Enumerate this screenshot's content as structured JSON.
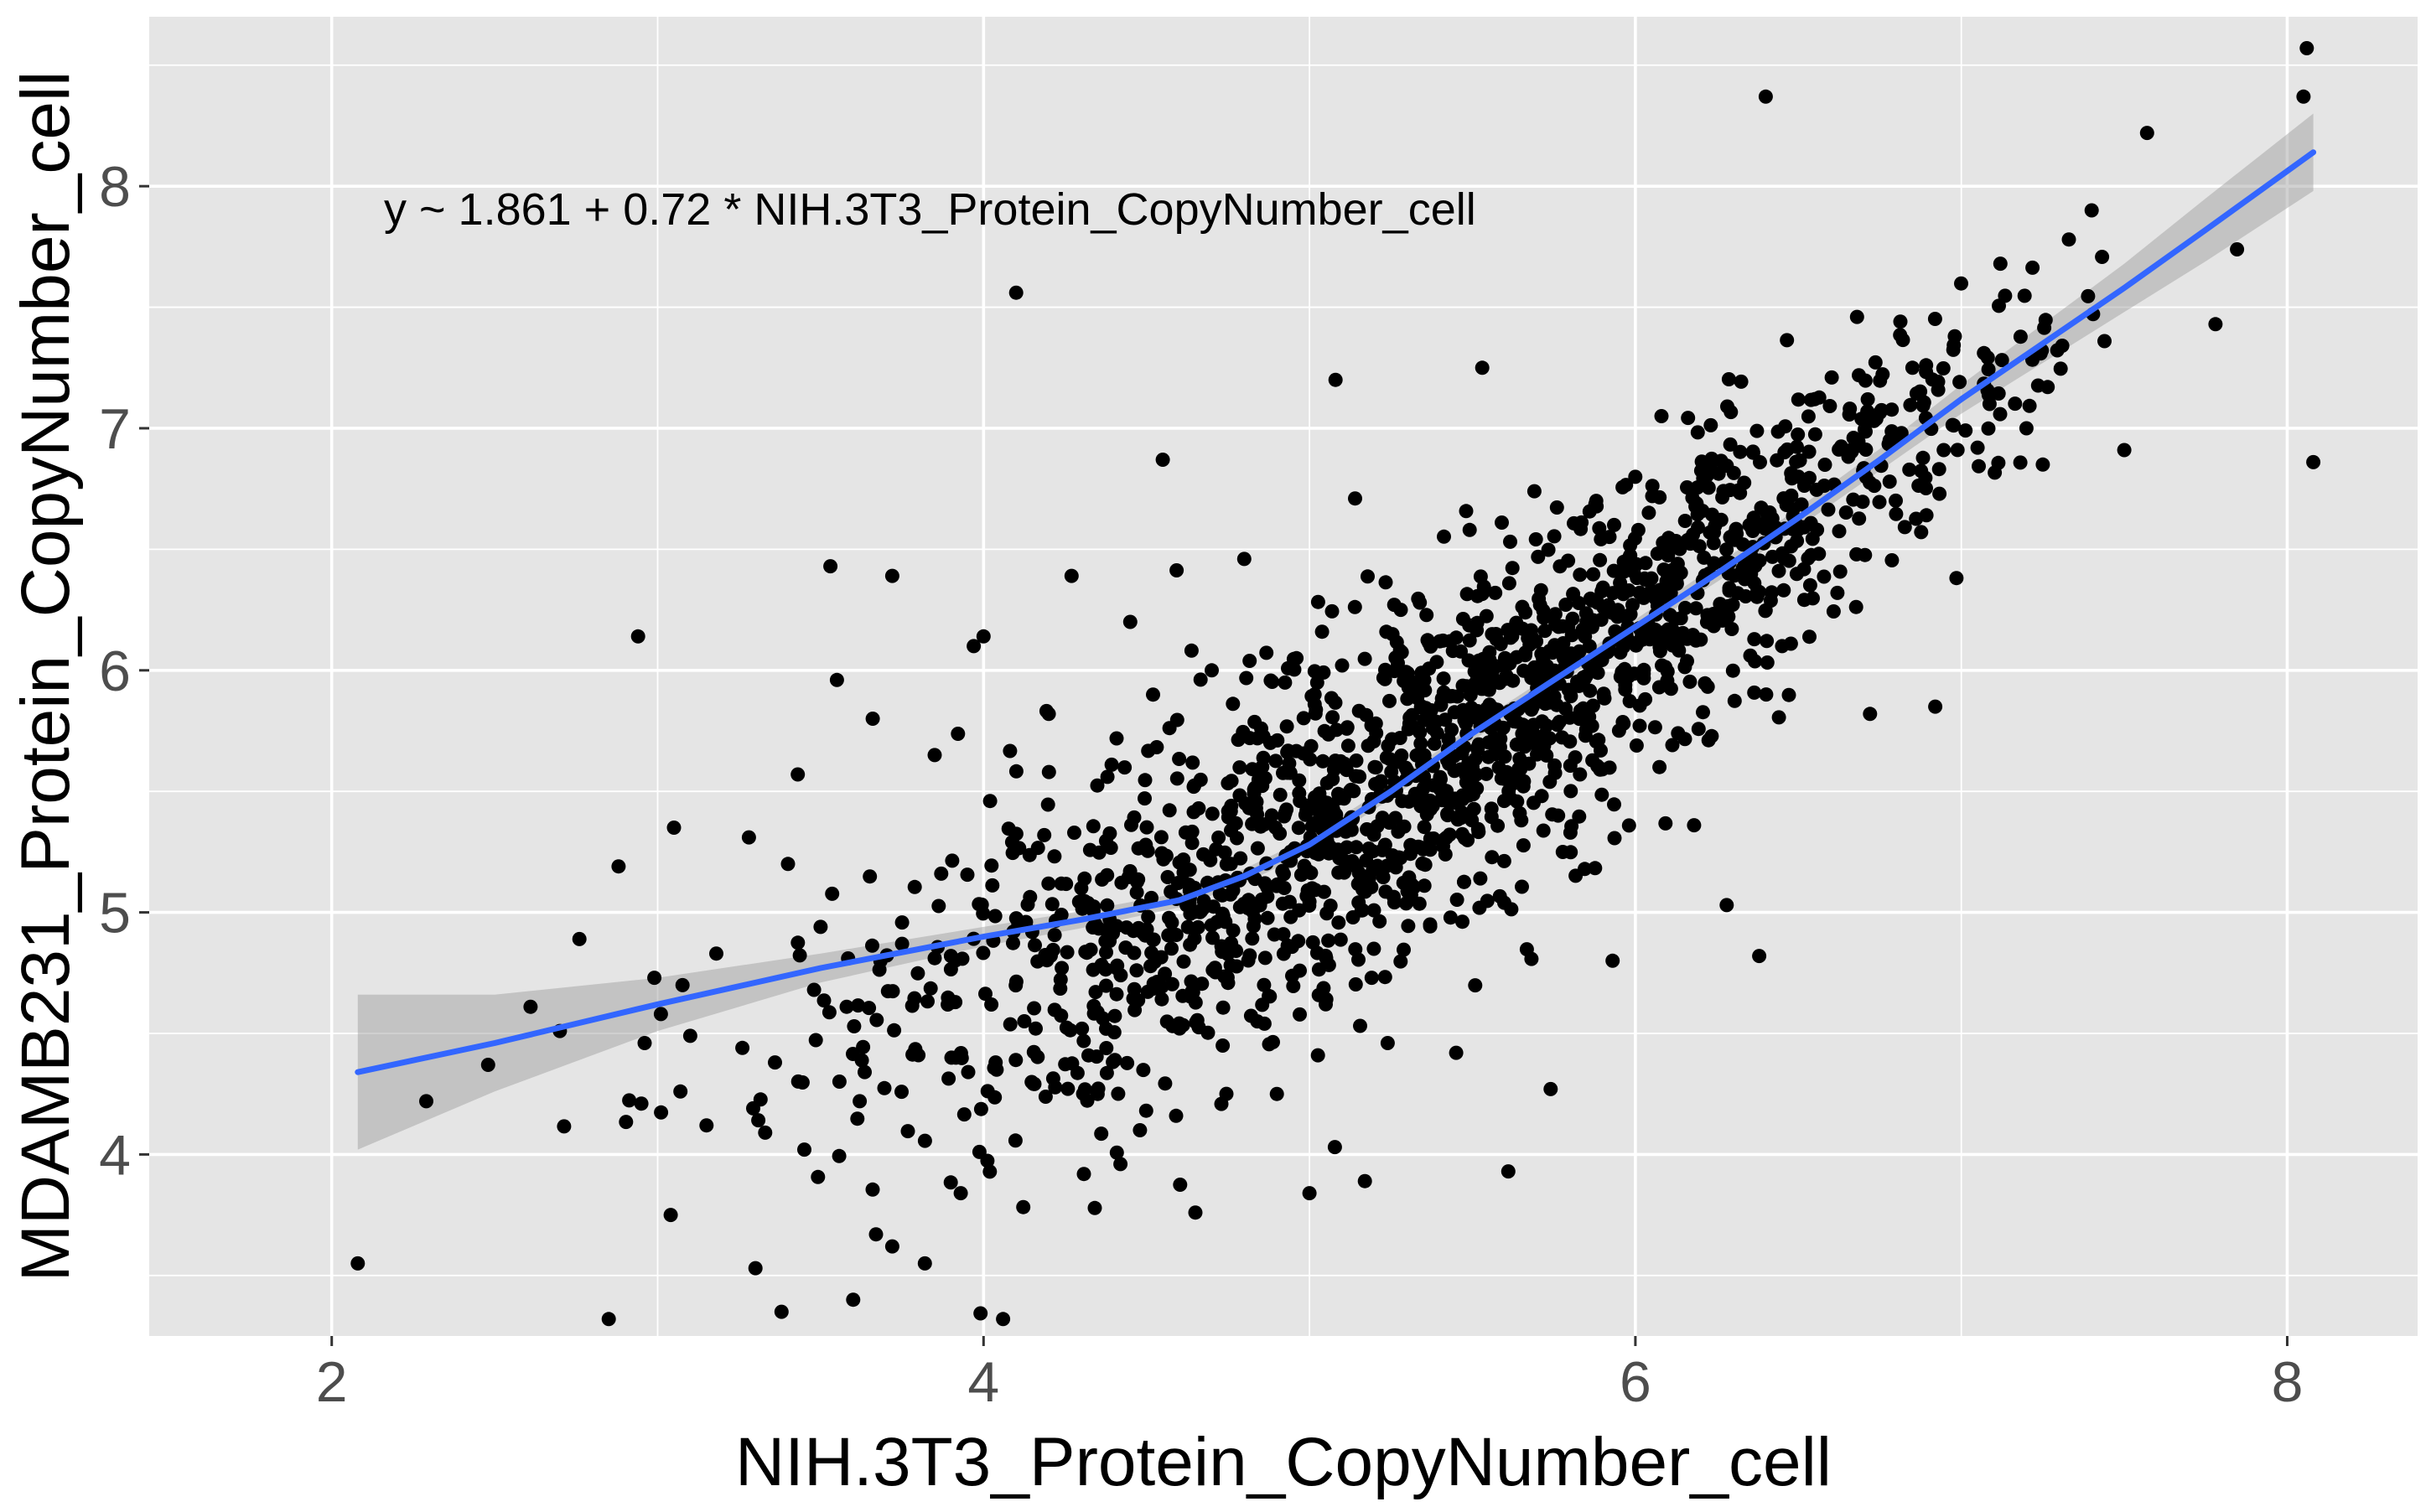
{
  "chart_data": {
    "type": "scatter",
    "title": "",
    "xlabel": "NIH.3T3_Protein_CopyNumber_cell",
    "ylabel": "MDAMB231_Protein_CopyNumber_cell",
    "xlim": [
      1.44,
      8.4
    ],
    "ylim": [
      3.25,
      8.7
    ],
    "x_ticks": [
      2,
      4,
      6,
      8
    ],
    "y_ticks": [
      4,
      5,
      6,
      7,
      8
    ],
    "x_tick_labels": [
      "2",
      "4",
      "6",
      "8"
    ],
    "y_tick_labels": [
      "4",
      "5",
      "6",
      "7",
      "8"
    ],
    "grid": true,
    "legend": "none",
    "annotation": "y ~ 1.861 + 0.72 * NIH.3T3_Protein_CopyNumber_cell",
    "colors": {
      "panel_background": "#e5e5e5",
      "grid": "#ffffff",
      "points": "#000000",
      "smooth_line": "#3366ff",
      "confidence_band": "#999999"
    },
    "smooth": {
      "method": "loess",
      "fit": [
        [
          2.08,
          4.34
        ],
        [
          2.5,
          4.46
        ],
        [
          3.0,
          4.62
        ],
        [
          3.5,
          4.77
        ],
        [
          4.0,
          4.9
        ],
        [
          4.3,
          4.97
        ],
        [
          4.6,
          5.05
        ],
        [
          4.8,
          5.15
        ],
        [
          5.0,
          5.28
        ],
        [
          5.25,
          5.5
        ],
        [
          5.5,
          5.74
        ],
        [
          5.75,
          5.96
        ],
        [
          6.0,
          6.18
        ],
        [
          6.25,
          6.4
        ],
        [
          6.5,
          6.63
        ],
        [
          6.75,
          6.87
        ],
        [
          7.0,
          7.12
        ],
        [
          7.25,
          7.35
        ],
        [
          7.5,
          7.58
        ],
        [
          7.75,
          7.82
        ],
        [
          8.08,
          8.14
        ]
      ],
      "band_width": [
        0.32,
        0.2,
        0.11,
        0.06,
        0.04,
        0.035,
        0.03,
        0.03,
        0.03,
        0.03,
        0.03,
        0.03,
        0.03,
        0.035,
        0.04,
        0.045,
        0.06,
        0.08,
        0.1,
        0.13,
        0.16
      ]
    },
    "points": [
      [
        2.08,
        3.55
      ],
      [
        2.29,
        4.22
      ],
      [
        2.48,
        4.37
      ],
      [
        2.61,
        4.61
      ],
      [
        2.7,
        4.51
      ],
      [
        2.76,
        4.89
      ],
      [
        2.85,
        3.32
      ],
      [
        2.88,
        5.19
      ],
      [
        2.94,
        6.14
      ],
      [
        2.95,
        4.21
      ],
      [
        2.96,
        4.46
      ],
      [
        2.99,
        4.73
      ],
      [
        3.01,
        4.58
      ],
      [
        3.04,
        3.75
      ],
      [
        3.05,
        5.35
      ],
      [
        3.07,
        4.26
      ],
      [
        3.1,
        4.49
      ],
      [
        3.15,
        4.12
      ],
      [
        3.18,
        4.83
      ],
      [
        3.26,
        4.44
      ],
      [
        3.28,
        5.31
      ],
      [
        3.3,
        3.53
      ],
      [
        3.33,
        4.09
      ],
      [
        3.36,
        4.38
      ],
      [
        3.38,
        3.35
      ],
      [
        3.4,
        5.2
      ],
      [
        3.43,
        5.57
      ],
      [
        3.45,
        4.02
      ],
      [
        3.48,
        4.68
      ],
      [
        3.5,
        4.94
      ],
      [
        3.53,
        6.43
      ],
      [
        3.55,
        5.96
      ],
      [
        3.58,
        4.61
      ],
      [
        3.6,
        3.4
      ],
      [
        3.62,
        4.22
      ],
      [
        3.66,
        5.8
      ],
      [
        3.67,
        3.67
      ],
      [
        3.72,
        6.39
      ],
      [
        3.75,
        4.87
      ],
      [
        3.8,
        4.41
      ],
      [
        3.82,
        3.55
      ],
      [
        3.85,
        5.65
      ],
      [
        3.87,
        5.16
      ],
      [
        3.9,
        4.82
      ],
      [
        3.93,
        3.84
      ],
      [
        3.97,
        6.1
      ],
      [
        4.0,
        6.14
      ],
      [
        4.02,
        5.46
      ],
      [
        4.04,
        4.35
      ],
      [
        4.06,
        3.32
      ],
      [
        4.1,
        7.56
      ],
      [
        4.13,
        4.96
      ],
      [
        4.16,
        4.52
      ],
      [
        4.2,
        5.82
      ],
      [
        4.24,
        4.77
      ],
      [
        4.27,
        6.39
      ],
      [
        4.3,
        5.1
      ],
      [
        4.35,
        4.25
      ],
      [
        4.38,
        5.56
      ],
      [
        4.41,
        4.78
      ],
      [
        4.45,
        6.2
      ],
      [
        4.48,
        4.1
      ],
      [
        4.52,
        5.9
      ],
      [
        4.55,
        6.87
      ],
      [
        4.58,
        4.53
      ],
      [
        4.62,
        5.33
      ],
      [
        4.65,
        3.76
      ],
      [
        4.7,
        6.0
      ],
      [
        4.73,
        4.86
      ],
      [
        4.76,
        5.44
      ],
      [
        4.8,
        6.46
      ],
      [
        4.84,
        4.55
      ],
      [
        4.88,
        5.7
      ],
      [
        4.92,
        4.91
      ],
      [
        4.96,
        6.05
      ],
      [
        5.0,
        3.84
      ],
      [
        5.02,
        5.37
      ],
      [
        5.05,
        4.62
      ],
      [
        5.08,
        7.2
      ],
      [
        5.1,
        6.02
      ],
      [
        5.14,
        6.71
      ],
      [
        5.17,
        3.89
      ],
      [
        5.2,
        5.6
      ],
      [
        5.24,
        4.46
      ],
      [
        5.28,
        6.25
      ],
      [
        5.33,
        5.48
      ],
      [
        5.37,
        4.95
      ],
      [
        5.4,
        6.12
      ],
      [
        5.45,
        4.42
      ],
      [
        5.48,
        5.78
      ],
      [
        5.53,
        7.25
      ],
      [
        5.57,
        6.32
      ],
      [
        5.61,
        3.93
      ],
      [
        5.65,
        5.38
      ],
      [
        5.69,
        6.74
      ],
      [
        5.74,
        4.27
      ],
      [
        5.78,
        6.05
      ],
      [
        5.83,
        5.57
      ],
      [
        5.88,
        6.7
      ],
      [
        5.93,
        4.8
      ],
      [
        5.98,
        6.33
      ],
      [
        6.03,
        5.88
      ],
      [
        6.08,
        7.05
      ],
      [
        6.13,
        6.44
      ],
      [
        6.18,
        5.36
      ],
      [
        6.23,
        6.85
      ],
      [
        6.28,
        5.03
      ],
      [
        6.33,
        6.52
      ],
      [
        6.38,
        4.82
      ],
      [
        6.4,
        8.37
      ],
      [
        6.45,
        6.1
      ],
      [
        6.5,
        6.8
      ],
      [
        6.55,
        7.12
      ],
      [
        6.62,
        6.32
      ],
      [
        6.68,
        7.46
      ],
      [
        6.72,
        5.82
      ],
      [
        6.78,
        6.95
      ],
      [
        6.85,
        7.25
      ],
      [
        6.92,
        5.85
      ],
      [
        6.98,
        7.38
      ],
      [
        7.05,
        6.92
      ],
      [
        7.12,
        7.68
      ],
      [
        7.2,
        7.0
      ],
      [
        7.25,
        6.85
      ],
      [
        7.33,
        7.78
      ],
      [
        7.4,
        7.9
      ],
      [
        7.5,
        6.91
      ],
      [
        7.57,
        8.22
      ],
      [
        7.78,
        7.43
      ],
      [
        8.05,
        8.37
      ],
      [
        8.06,
        8.57
      ],
      [
        8.08,
        6.86
      ],
      [
        3.72,
        3.62
      ],
      [
        4.42,
        3.96
      ],
      [
        4.9,
        4.25
      ],
      [
        5.3,
        5.95
      ],
      [
        5.6,
        6.05
      ],
      [
        5.85,
        6.2
      ],
      [
        6.1,
        6.3
      ],
      [
        6.35,
        6.6
      ]
    ],
    "dense_clusters": [
      {
        "cx": 4.95,
        "cy": 5.25,
        "sx": 0.48,
        "sy": 0.55,
        "n": 620
      },
      {
        "cx": 5.65,
        "cy": 5.85,
        "sx": 0.42,
        "sy": 0.45,
        "n": 540
      },
      {
        "cx": 6.35,
        "cy": 6.55,
        "sx": 0.35,
        "sy": 0.38,
        "n": 280
      },
      {
        "cx": 4.05,
        "cy": 4.85,
        "sx": 0.45,
        "sy": 0.5,
        "n": 140
      },
      {
        "cx": 6.95,
        "cy": 7.05,
        "sx": 0.25,
        "sy": 0.3,
        "n": 70
      }
    ]
  }
}
